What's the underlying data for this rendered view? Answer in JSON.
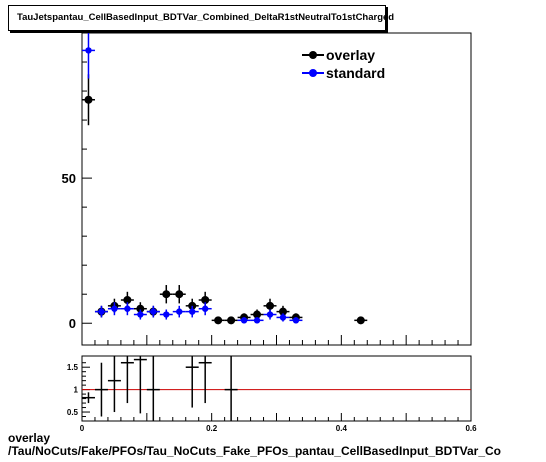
{
  "title": "TauJetspantau_CellBasedInput_BDTVar_Combined_DeltaR1stNeutralTo1stCharged",
  "bottom_label_line1": "overlay",
  "bottom_label_line2": "/Tau/NoCuts/Fake/PFOs/Tau_NoCuts_Fake_PFOs_pantau_CellBasedInput_BDTVar_Co",
  "colors": {
    "overlay": "#000000",
    "standard": "#0000ff",
    "ratio_line": "#cc0000"
  },
  "chart_data": [
    {
      "type": "scatter",
      "title": "TauJetspantau_CellBasedInput_BDTVar_Combined_DeltaR1stNeutralTo1stCharged",
      "xlim": [
        0,
        0.6
      ],
      "ylim": [
        -7.5,
        100
      ],
      "x_ticks": [
        "0",
        "0.2",
        "0.4",
        "0.6"
      ],
      "y_ticks": [
        "0",
        "50"
      ],
      "legend_position": "top-right",
      "bin_width": 0.02,
      "series": [
        {
          "name": "overlay",
          "x": [
            0.01,
            0.03,
            0.05,
            0.07,
            0.09,
            0.11,
            0.13,
            0.15,
            0.17,
            0.19,
            0.21,
            0.23,
            0.25,
            0.27,
            0.29,
            0.31,
            0.33,
            0.43
          ],
          "y": [
            77,
            4,
            6,
            8,
            5,
            4,
            10,
            10,
            6,
            8,
            1,
            1,
            2,
            3,
            6,
            4,
            2,
            1
          ]
        },
        {
          "name": "standard",
          "x": [
            0.01,
            0.03,
            0.05,
            0.07,
            0.09,
            0.11,
            0.13,
            0.15,
            0.17,
            0.19,
            0.25,
            0.27,
            0.29,
            0.31,
            0.33
          ],
          "y": [
            94,
            4,
            5,
            5,
            3,
            4,
            3,
            4,
            4,
            5,
            1,
            1,
            3,
            2,
            1
          ]
        }
      ]
    },
    {
      "type": "scatter",
      "xlim": [
        0,
        0.6
      ],
      "ylim": [
        0.3,
        1.75
      ],
      "x_ticks": [
        "0",
        "0.2",
        "0.4",
        "0.6"
      ],
      "y_ticks": [
        "0.5",
        "1",
        "1.5"
      ],
      "reference_line": 1,
      "series": [
        {
          "name": "ratio",
          "x": [
            0.01,
            0.03,
            0.05,
            0.07,
            0.09,
            0.11,
            0.17,
            0.19,
            0.23
          ],
          "y": [
            0.82,
            1.0,
            1.2,
            1.6,
            1.67,
            1.0,
            1.5,
            1.6,
            1.0
          ],
          "err": [
            0.12,
            0.6,
            0.7,
            0.9,
            1.2,
            0.9,
            0.9,
            0.9,
            1.0
          ]
        }
      ]
    }
  ]
}
